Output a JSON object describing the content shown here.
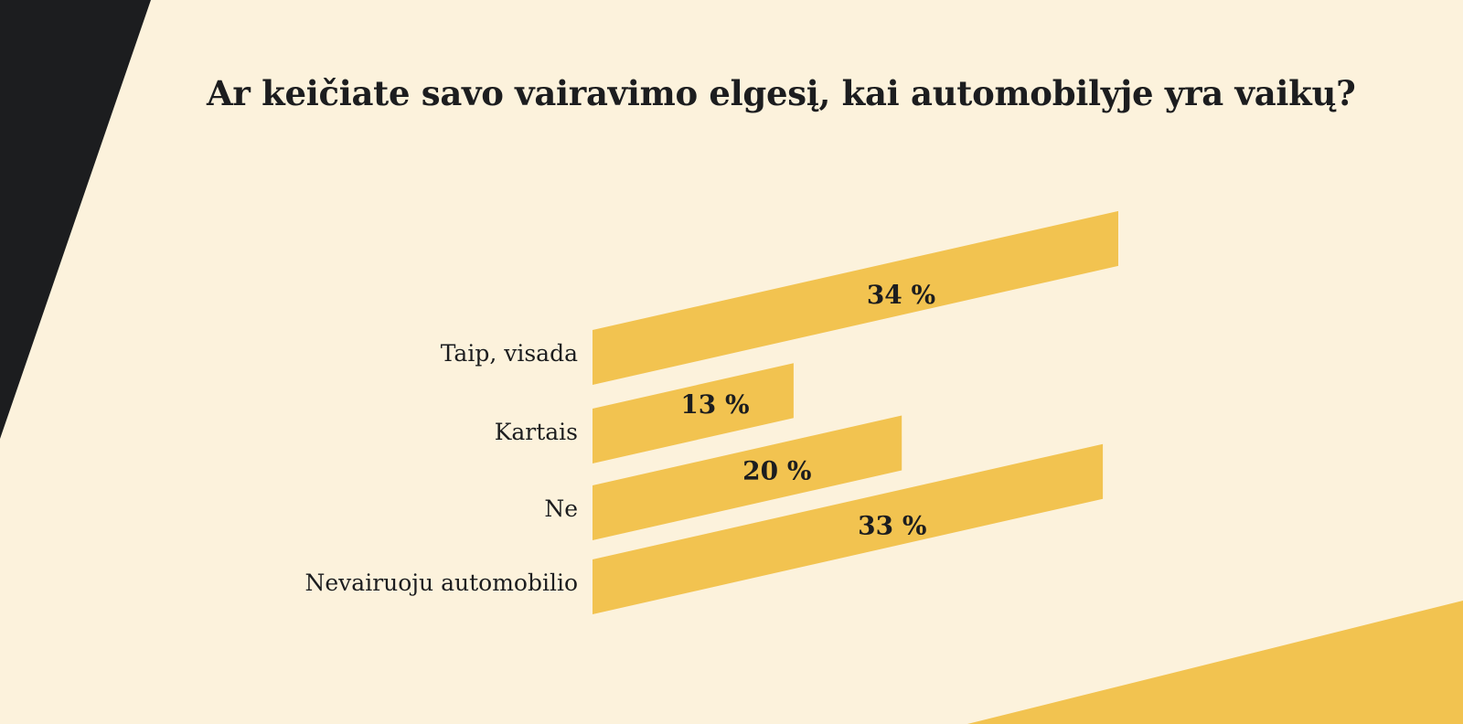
{
  "colors": {
    "background": "#fcf2dc",
    "bar": "#f2c350",
    "dark": "#1c1d1f"
  },
  "chart_data": {
    "type": "bar",
    "orientation": "horizontal",
    "title": "Ar keičiate savo vairavimo elgesį, kai automobilyje yra vaikų?",
    "categories": [
      "Taip, visada",
      "Kartais",
      "Ne",
      "Nevairuoju automobilio"
    ],
    "values": [
      34,
      13,
      20,
      33
    ],
    "value_labels": [
      "34 %",
      "13 %",
      "20 %",
      "33 %"
    ],
    "unit": "%",
    "xlim": [
      0,
      34
    ],
    "grid": false,
    "legend": "none"
  }
}
